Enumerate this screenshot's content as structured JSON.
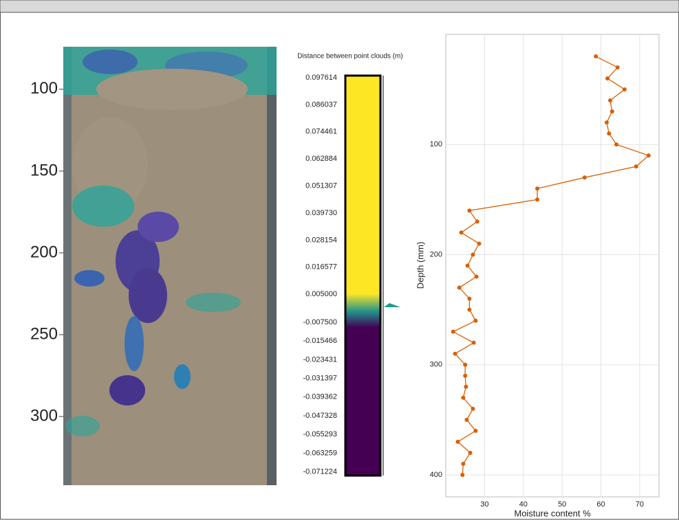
{
  "chart_data": [
    {
      "type": "image",
      "ylim": [
        74,
        342
      ],
      "yticks": [
        100,
        150,
        200,
        250,
        300
      ]
    },
    {
      "type": "colorbar",
      "title": "Distance between point clouds (m)",
      "ticks": [
        0.097614,
        0.086037,
        0.074461,
        0.062884,
        0.051307,
        {
          "value": 0.03973,
          "label": "0.039730"
        },
        0.028154,
        0.016577,
        {
          "value": 0.005,
          "label": "0.005000"
        },
        {
          "value": -0.0075,
          "label": "-0.007500"
        },
        -0.015466,
        -0.023431,
        -0.031397,
        -0.039362,
        -0.047328,
        -0.055293,
        -0.063259,
        -0.071224
      ],
      "colors": [
        "#fde725",
        "#21918c",
        "#440154"
      ]
    },
    {
      "type": "line",
      "xlabel": "Moisture content %",
      "ylabel": "Depth (mm)",
      "color": "#d95f02",
      "xlim": [
        20,
        75
      ],
      "ylim": [
        0,
        420
      ],
      "invert_y": true,
      "grid": true,
      "xticks": [
        30,
        40,
        50,
        60,
        70
      ],
      "yticks": [
        100,
        200,
        300,
        400
      ],
      "x": [
        58.7,
        64.3,
        61.7,
        66.1,
        62.4,
        62.9,
        61.5,
        62.1,
        64.0,
        72.3,
        69.1,
        55.8,
        43.6,
        43.6,
        26.1,
        28.1,
        24.0,
        28.6,
        27.0,
        25.6,
        27.9,
        23.5,
        26.1,
        26.1,
        27.7,
        21.9,
        27.2,
        22.4,
        25.0,
        25.0,
        25.2,
        24.5,
        27.0,
        25.4,
        27.7,
        23.1,
        26.3,
        24.5,
        24.3
      ],
      "y": [
        20,
        30,
        40,
        50,
        60,
        70,
        80,
        90,
        100,
        110,
        120,
        130,
        140,
        150,
        160,
        170,
        180,
        190,
        200,
        210,
        220,
        230,
        240,
        250,
        260,
        270,
        280,
        290,
        300,
        310,
        320,
        330,
        340,
        350,
        360,
        370,
        380,
        390,
        400
      ]
    }
  ]
}
